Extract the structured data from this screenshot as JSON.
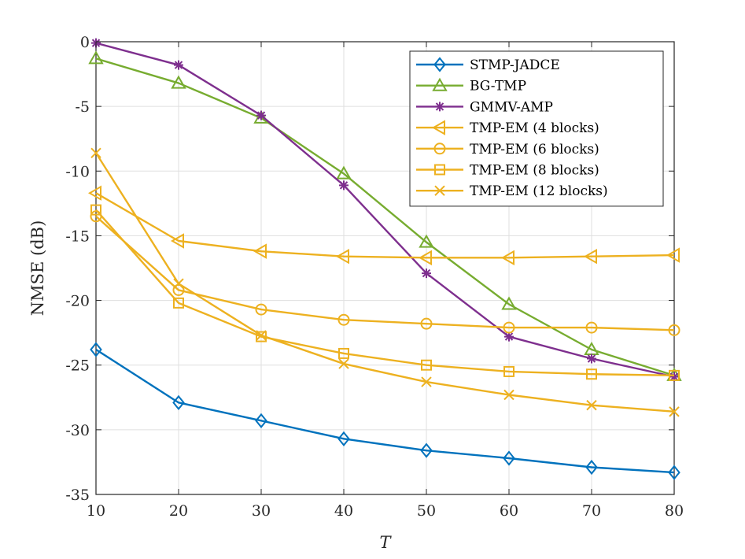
{
  "chart_data": {
    "type": "line",
    "xlabel": "T",
    "ylabel": "NMSE (dB)",
    "xlim": [
      10,
      80
    ],
    "ylim": [
      -35,
      0
    ],
    "xticks": [
      10,
      20,
      30,
      40,
      50,
      60,
      70,
      80
    ],
    "yticks": [
      0,
      -5,
      -10,
      -15,
      -20,
      -25,
      -30,
      -35
    ],
    "grid": true,
    "legend_position": "top-right",
    "x": [
      10,
      20,
      30,
      40,
      50,
      60,
      70,
      80
    ],
    "series": [
      {
        "name": "STMP-JADCE",
        "color": "#0072BD",
        "marker": "diamond",
        "values": [
          -23.8,
          -27.9,
          -29.3,
          -30.7,
          -31.6,
          -32.2,
          -32.9,
          -33.3
        ]
      },
      {
        "name": "BG-TMP",
        "color": "#77AC30",
        "marker": "triangle-up",
        "values": [
          -1.3,
          -3.2,
          -5.9,
          -10.2,
          -15.5,
          -20.3,
          -23.8,
          -25.8
        ]
      },
      {
        "name": "GMMV-AMP",
        "color": "#7E2F8E",
        "marker": "asterisk",
        "values": [
          -0.1,
          -1.8,
          -5.7,
          -11.1,
          -17.9,
          -22.8,
          -24.5,
          -25.9
        ]
      },
      {
        "name": "TMP-EM (4 blocks)",
        "color": "#EDB120",
        "marker": "triangle-left",
        "values": [
          -11.7,
          -15.4,
          -16.2,
          -16.6,
          -16.7,
          -16.7,
          -16.6,
          -16.5
        ]
      },
      {
        "name": "TMP-EM (6 blocks)",
        "color": "#EDB120",
        "marker": "circle",
        "values": [
          -13.5,
          -19.2,
          -20.7,
          -21.5,
          -21.8,
          -22.1,
          -22.1,
          -22.3
        ]
      },
      {
        "name": "TMP-EM (8 blocks)",
        "color": "#EDB120",
        "marker": "square",
        "values": [
          -13.0,
          -20.2,
          -22.8,
          -24.1,
          -25.0,
          -25.5,
          -25.7,
          -25.8
        ]
      },
      {
        "name": "TMP-EM (12 blocks)",
        "color": "#EDB120",
        "marker": "x",
        "values": [
          -8.6,
          -18.7,
          -22.7,
          -24.9,
          -26.3,
          -27.3,
          -28.1,
          -28.6
        ]
      }
    ]
  }
}
